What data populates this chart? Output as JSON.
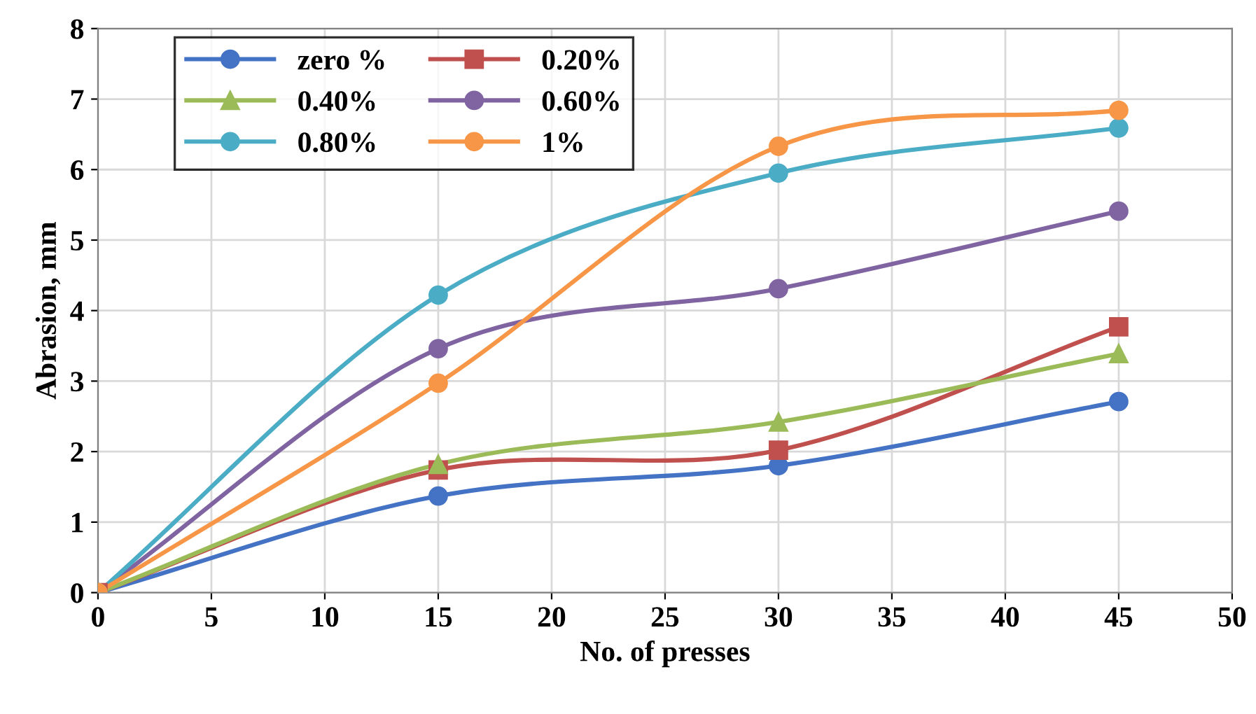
{
  "chart_data": {
    "type": "line",
    "xlabel": "No. of presses",
    "ylabel": "Abrasion, mm",
    "x": [
      0,
      15,
      30,
      45
    ],
    "series": [
      {
        "name": "zero %",
        "color": "#4472c4",
        "marker": "circle",
        "values": [
          0,
          1.37,
          1.8,
          2.71
        ]
      },
      {
        "name": "0.20%",
        "color": "#c0504d",
        "marker": "square",
        "values": [
          0,
          1.74,
          2.02,
          3.77
        ]
      },
      {
        "name": "0.40%",
        "color": "#9bbb59",
        "marker": "triangle",
        "values": [
          0,
          1.82,
          2.42,
          3.39
        ]
      },
      {
        "name": "0.60%",
        "color": "#8064a2",
        "marker": "circle",
        "values": [
          0,
          3.46,
          4.31,
          5.41
        ]
      },
      {
        "name": "0.80%",
        "color": "#4bacc6",
        "marker": "circle",
        "values": [
          0,
          4.22,
          5.95,
          6.59
        ]
      },
      {
        "name": "1%",
        "color": "#f79646",
        "marker": "circle",
        "values": [
          0,
          2.97,
          6.33,
          6.84
        ]
      }
    ],
    "xlim": [
      0,
      50
    ],
    "xticks": [
      0,
      5,
      10,
      15,
      20,
      25,
      30,
      35,
      40,
      45,
      50
    ],
    "ylim": [
      0,
      8
    ],
    "yticks": [
      0,
      1,
      2,
      3,
      4,
      5,
      6,
      7,
      8
    ],
    "grid": true,
    "legend": "top left"
  }
}
